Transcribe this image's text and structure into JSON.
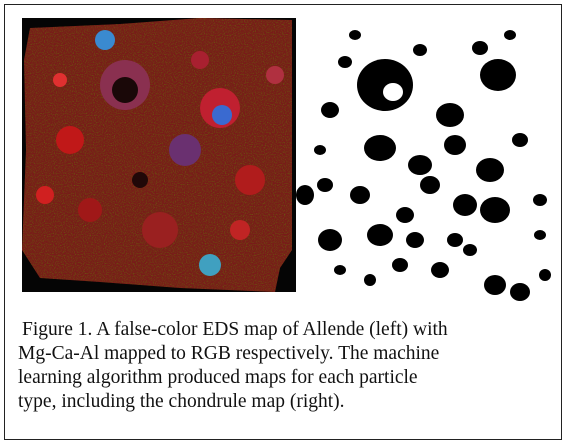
{
  "figure": {
    "caption_lines": [
      "Figure 1. A false-color EDS map of Allende (left) with",
      "Mg-Ca-Al mapped to RGB respectively. The machine",
      "learning algorithm produced maps for each particle",
      "type, including the chondrule map (right)."
    ]
  }
}
